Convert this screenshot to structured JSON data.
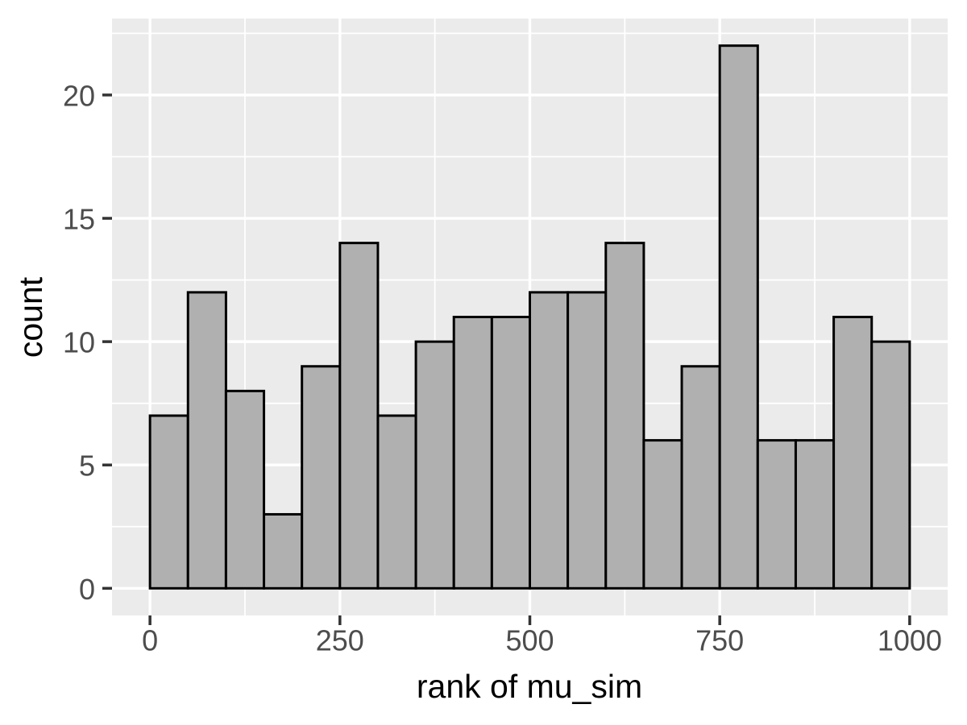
{
  "figure": {
    "background": "#FFFFFF"
  },
  "chart_data": {
    "type": "bar",
    "subtype": "histogram",
    "title": "",
    "xlabel": "rank of mu_sim",
    "ylabel": "count",
    "bin_width": 50,
    "bin_edges": [
      0,
      50,
      100,
      150,
      200,
      250,
      300,
      350,
      400,
      450,
      500,
      550,
      600,
      650,
      700,
      750,
      800,
      850,
      900,
      950,
      1000
    ],
    "counts": [
      7,
      12,
      8,
      3,
      9,
      14,
      7,
      10,
      11,
      11,
      12,
      12,
      14,
      6,
      9,
      22,
      6,
      6,
      11,
      10
    ],
    "x_ticks": [
      0,
      250,
      500,
      750,
      1000
    ],
    "x_tick_labels": [
      "0",
      "250",
      "500",
      "750",
      "1000"
    ],
    "y_ticks": [
      0,
      5,
      10,
      15,
      20
    ],
    "y_tick_labels": [
      "0",
      "5",
      "10",
      "15",
      "20"
    ],
    "x_minor_breaks": [
      125,
      375,
      625,
      875
    ],
    "y_minor_breaks": [
      2.5,
      7.5,
      12.5,
      17.5,
      22.5
    ],
    "xlim": [
      -50,
      1050
    ],
    "ylim": [
      -1.1,
      23.1
    ],
    "grid": true,
    "legend": "none",
    "colors": {
      "panel_background": "#EBEBEB",
      "grid_major": "#FFFFFF",
      "grid_minor": "#FFFFFF",
      "bar_fill": "#B0B0B0",
      "bar_stroke": "#000000",
      "tick_mark": "#333333",
      "tick_label": "#4D4D4D",
      "axis_title": "#000000"
    }
  }
}
